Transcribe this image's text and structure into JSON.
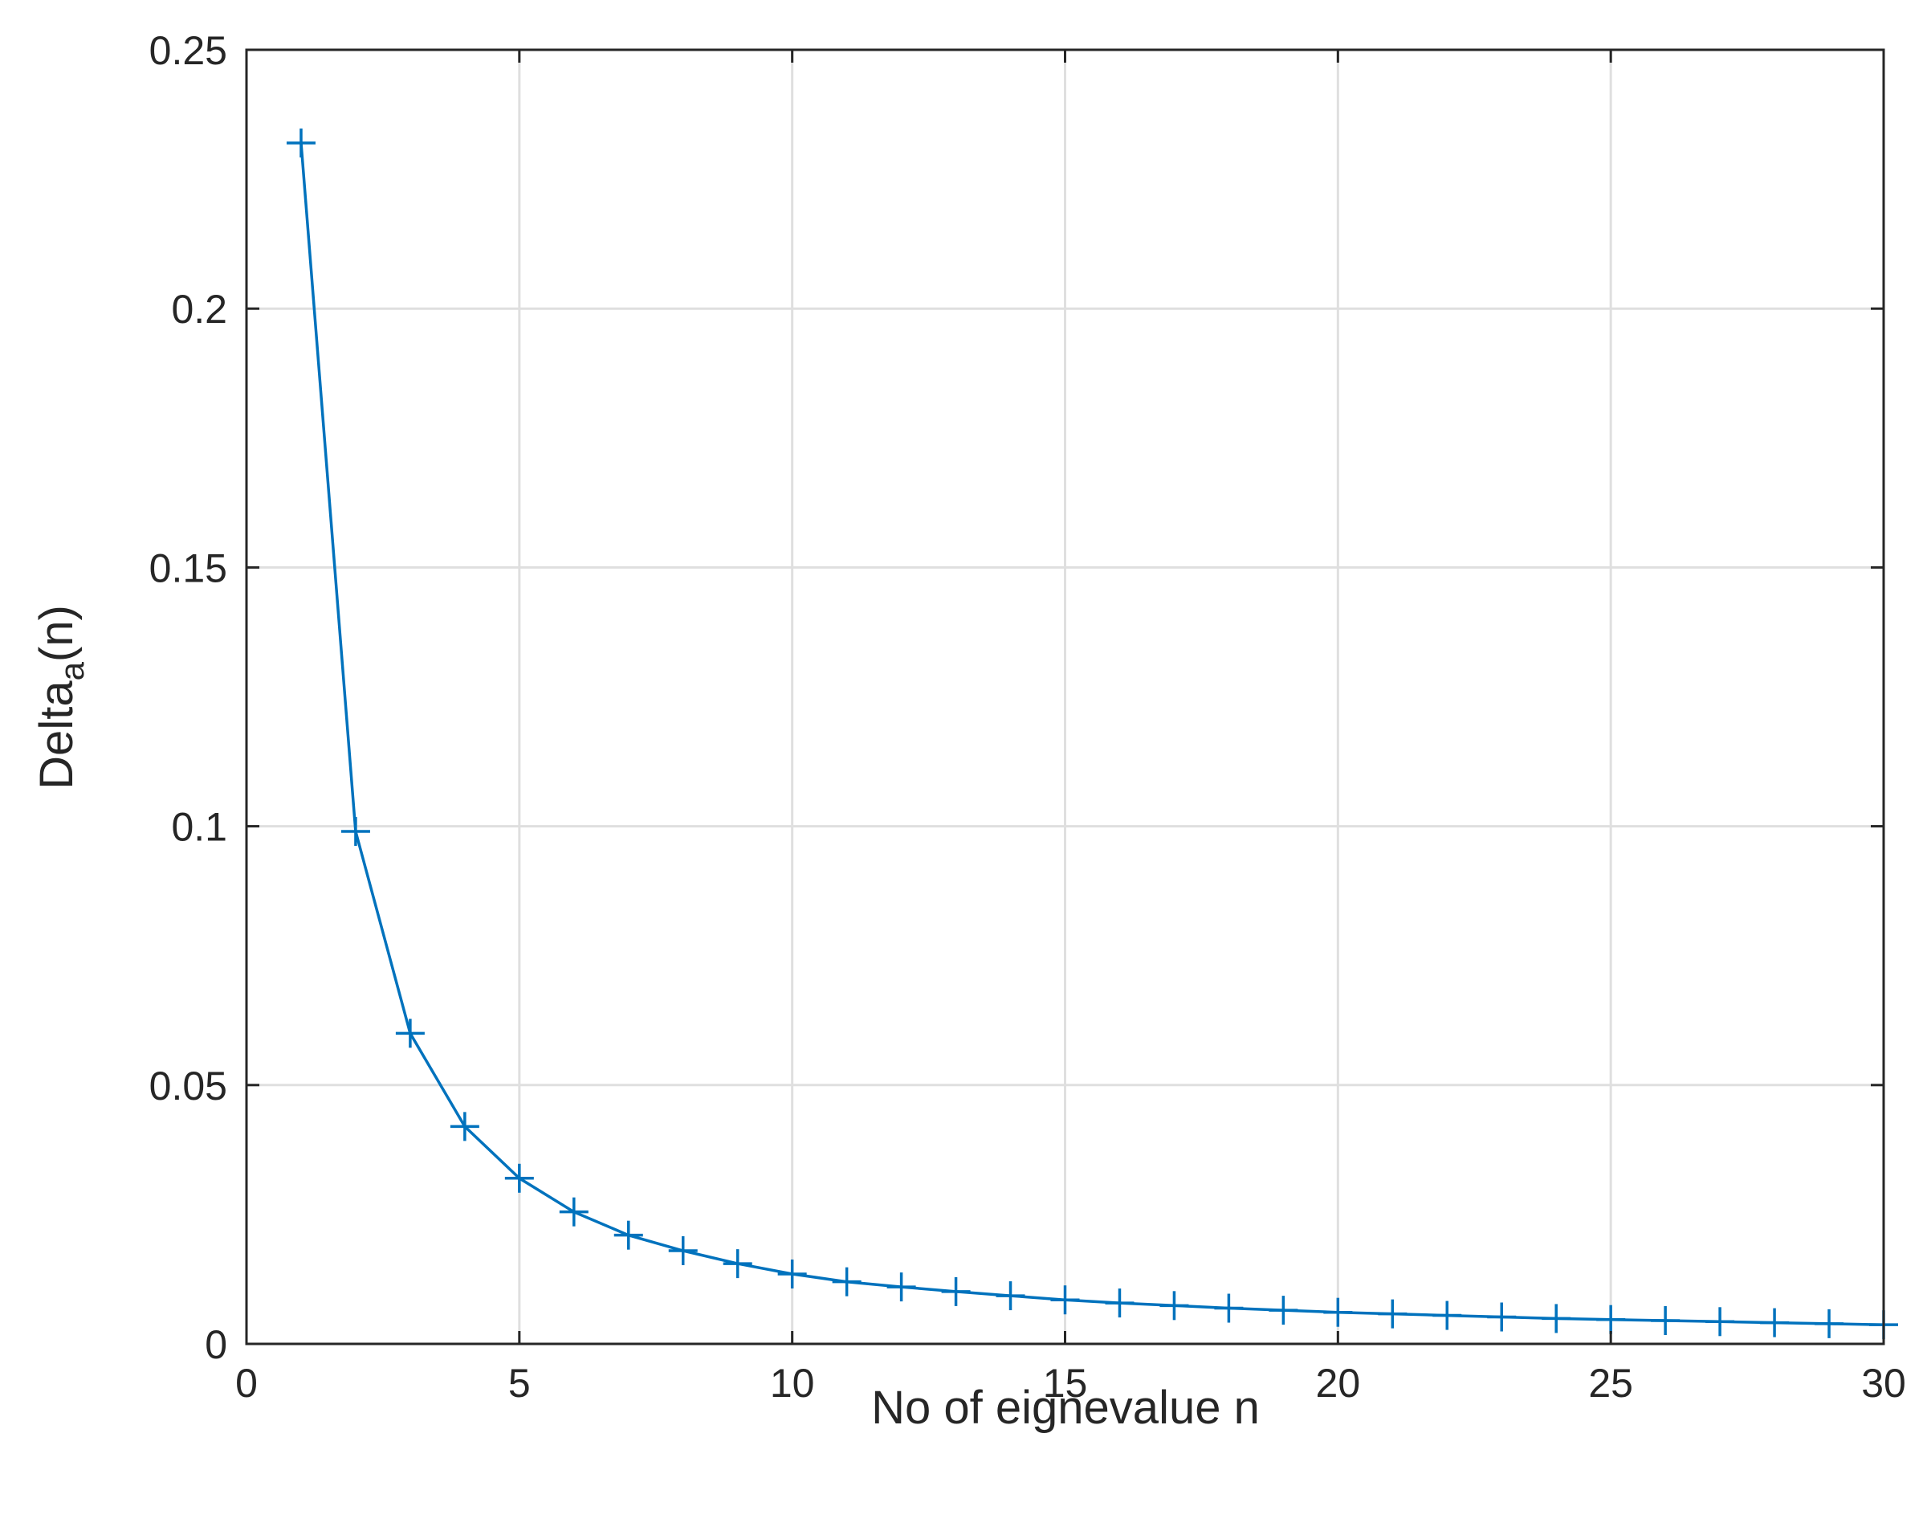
{
  "chart_data": {
    "type": "line",
    "xlabel": "No of eignevalue n",
    "ylabel_main": "Delta",
    "ylabel_sub": "a",
    "ylabel_tail": "(n)",
    "xlim": [
      0,
      30
    ],
    "ylim": [
      0,
      0.25
    ],
    "xticks": [
      0,
      5,
      10,
      15,
      20,
      25,
      30
    ],
    "yticks": [
      0,
      0.05,
      0.1,
      0.15,
      0.2,
      0.25
    ],
    "xtick_labels": [
      "0",
      "5",
      "10",
      "15",
      "20",
      "25",
      "30"
    ],
    "ytick_labels": [
      "0",
      "0.05",
      "0.1",
      "0.15",
      "0.2",
      "0.25"
    ],
    "grid": true,
    "marker": "+",
    "color": "#0072bd",
    "series": [
      {
        "x": [
          1,
          2,
          3,
          4,
          5,
          6,
          7,
          8,
          9,
          10,
          11,
          12,
          13,
          14,
          15,
          16,
          17,
          18,
          19,
          20,
          21,
          22,
          23,
          24,
          25,
          26,
          27,
          28,
          29,
          30
        ],
        "y": [
          0.232,
          0.099,
          0.06,
          0.042,
          0.032,
          0.0255,
          0.021,
          0.018,
          0.0155,
          0.0135,
          0.012,
          0.011,
          0.0101,
          0.0093,
          0.0085,
          0.0079,
          0.0074,
          0.0069,
          0.0065,
          0.0061,
          0.0058,
          0.0055,
          0.0052,
          0.0049,
          0.0047,
          0.0045,
          0.0043,
          0.0041,
          0.0039,
          0.0037
        ]
      }
    ]
  }
}
